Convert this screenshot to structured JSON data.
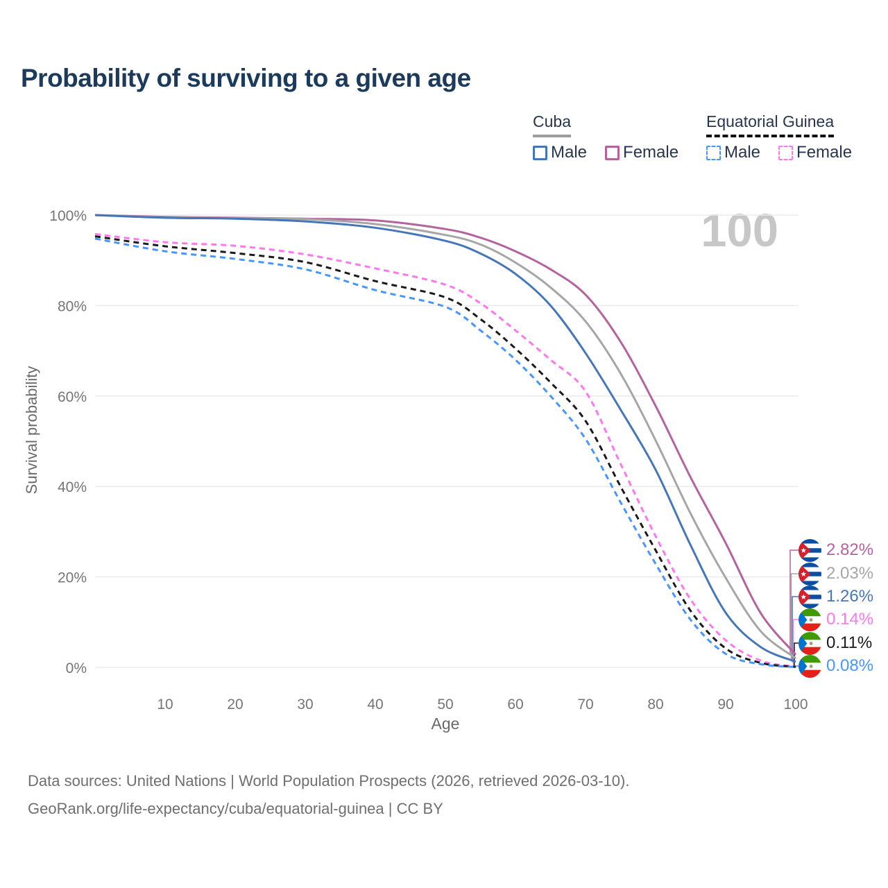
{
  "title": "Probability of surviving to a given age",
  "watermark": "100",
  "legend": {
    "groups": [
      {
        "label": "Cuba",
        "line_style": "solid",
        "items": [
          {
            "label": "Male",
            "color": "#4577b8"
          },
          {
            "label": "Female",
            "color": "#b4639f"
          }
        ]
      },
      {
        "label": "Equatorial Guinea",
        "line_style": "dashed",
        "items": [
          {
            "label": "Male",
            "color": "#4596ff"
          },
          {
            "label": "Female",
            "color": "#ff77f0"
          }
        ]
      }
    ]
  },
  "chart_data": {
    "type": "line",
    "title": "Probability of surviving to a given age",
    "xlabel": "Age",
    "ylabel": "Survival probability",
    "xlim": [
      0,
      100
    ],
    "ylim": [
      0,
      100
    ],
    "grid": "horizontal",
    "x_ticks": [
      10,
      20,
      30,
      40,
      50,
      60,
      70,
      80,
      90,
      100
    ],
    "y_ticks": [
      0,
      20,
      40,
      60,
      80,
      100
    ],
    "y_tick_suffix": "%",
    "x": [
      0,
      10,
      20,
      30,
      40,
      50,
      55,
      60,
      65,
      70,
      75,
      80,
      85,
      90,
      95,
      100
    ],
    "series": [
      {
        "id": "cuba-female",
        "name": "Cuba — Female",
        "country": "Cuba",
        "color": "#b4639f",
        "dash": "solid",
        "flag": "cuba",
        "end_label": "2.82%",
        "values": [
          100,
          99.6,
          99.4,
          99.2,
          98.8,
          96.9,
          95.0,
          92.0,
          88.0,
          82.4,
          72.0,
          57.8,
          42.0,
          27.5,
          12.0,
          2.82
        ]
      },
      {
        "id": "cuba-both",
        "name": "Cuba — Both sexes",
        "country": "Cuba",
        "color": "#a6a6a6",
        "dash": "solid",
        "flag": "cuba",
        "end_label": "2.03%",
        "values": [
          100,
          99.5,
          99.3,
          99.1,
          98.0,
          95.6,
          93.5,
          89.5,
          84.0,
          76.5,
          65.0,
          50.2,
          34.0,
          19.8,
          8.0,
          2.03
        ]
      },
      {
        "id": "cuba-male",
        "name": "Cuba — Male",
        "country": "Cuba",
        "color": "#4577b8",
        "dash": "solid",
        "flag": "cuba",
        "end_label": "1.26%",
        "values": [
          100,
          99.4,
          99.2,
          98.6,
          97.2,
          94.3,
          91.5,
          87.0,
          80.0,
          69.5,
          57.0,
          43.7,
          27.0,
          12.1,
          4.5,
          1.26
        ]
      },
      {
        "id": "gq-female",
        "name": "Equatorial Guinea — Female",
        "country": "Equatorial Guinea",
        "color": "#ff77f0",
        "dash": "dashed",
        "flag": "equatorial-guinea",
        "end_label": "0.14%",
        "values": [
          95.8,
          94.0,
          93.2,
          91.3,
          88.2,
          84.6,
          80.5,
          74.5,
          68.0,
          61.0,
          45.0,
          29.0,
          15.0,
          6.0,
          1.5,
          0.14
        ]
      },
      {
        "id": "gq-both",
        "name": "Equatorial Guinea — Both sexes",
        "country": "Equatorial Guinea",
        "color": "#1a1a1a",
        "dash": "dashed",
        "flag": "equatorial-guinea",
        "end_label": "0.11%",
        "values": [
          95.3,
          93.1,
          91.6,
          89.6,
          85.4,
          81.8,
          77.0,
          70.5,
          63.0,
          54.5,
          40.0,
          25.9,
          12.5,
          4.2,
          1.0,
          0.11
        ]
      },
      {
        "id": "gq-male",
        "name": "Equatorial Guinea — Male",
        "country": "Equatorial Guinea",
        "color": "#4596ff",
        "dash": "dashed",
        "flag": "equatorial-guinea",
        "end_label": "0.08%",
        "values": [
          94.8,
          92.0,
          90.3,
          88.0,
          83.4,
          79.7,
          74.5,
          68.0,
          60.0,
          50.5,
          36.5,
          22.9,
          10.5,
          3.0,
          0.7,
          0.08
        ]
      }
    ]
  },
  "footer": {
    "line1": "Data sources: United Nations | World Population Prospects (2026, retrieved 2026-03-10).",
    "line2": "GeoRank.org/life-expectancy/cuba/equatorial-guinea | CC BY"
  }
}
